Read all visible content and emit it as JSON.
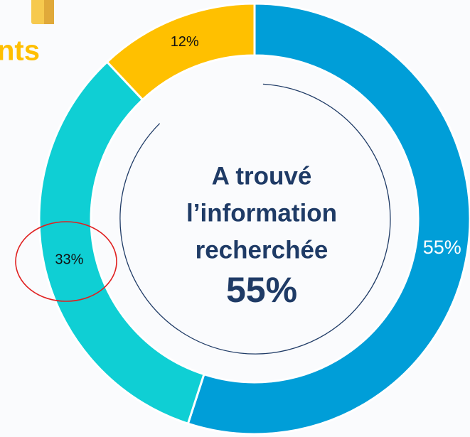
{
  "header": {
    "title_fragment": "nts"
  },
  "chart_data": {
    "type": "donut",
    "categories": [
      null,
      null,
      null
    ],
    "values": [
      55,
      33,
      12
    ],
    "value_labels": [
      "55%",
      "33%",
      "12%"
    ],
    "colors": [
      "#009ed8",
      "#0fcfd4",
      "#ffc000"
    ],
    "center_lines": [
      "A trouvé",
      "l’information",
      "recherchée"
    ]
  }
}
